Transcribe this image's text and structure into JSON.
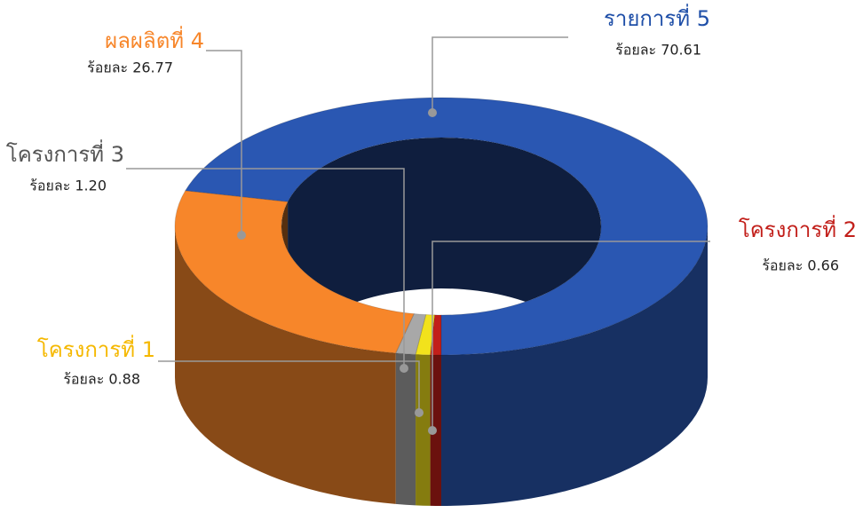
{
  "chart_data": {
    "type": "pie",
    "donut": true,
    "categories": [
      "โครงการที่ 2",
      "โครงการที่ 1",
      "โครงการที่ 3",
      "ผลผลิตที่ 4",
      "รายการที่ 5"
    ],
    "values": [
      0.66,
      0.88,
      1.2,
      26.77,
      70.61
    ],
    "value_labels": [
      "ร้อยละ 0.66",
      "ร้อยละ 0.88",
      "ร้อยละ 1.20",
      "ร้อยละ 26.77",
      "ร้อยละ 70.61"
    ],
    "colors": [
      "#c21f1a",
      "#f2e21c",
      "#a8a8a8",
      "#f7862a",
      "#2a57b2"
    ],
    "label_colors": [
      "#c21f1a",
      "#f5b800",
      "#555555",
      "#f7862a",
      "#1f4fa8"
    ]
  }
}
